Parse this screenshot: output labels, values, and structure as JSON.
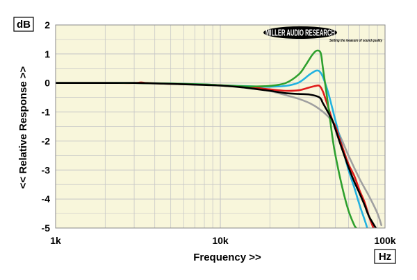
{
  "chart_data": {
    "type": "line",
    "title": "",
    "xlabel": "Frequency >>",
    "ylabel": "<< Relative Response >>",
    "x_unit": "Hz",
    "y_unit": "dB",
    "x_scale": "log",
    "xlim": [
      1000,
      100000
    ],
    "ylim": [
      -5,
      2
    ],
    "x_ticks": [
      {
        "value": 1000,
        "label": "1k"
      },
      {
        "value": 10000,
        "label": "10k"
      },
      {
        "value": 100000,
        "label": "100k"
      }
    ],
    "y_ticks": [
      {
        "value": 2,
        "label": "2"
      },
      {
        "value": 1,
        "label": "1"
      },
      {
        "value": 0,
        "label": "0"
      },
      {
        "value": -1,
        "label": "-1"
      },
      {
        "value": -2,
        "label": "-2"
      },
      {
        "value": -3,
        "label": "-3"
      },
      {
        "value": -4,
        "label": "-4"
      },
      {
        "value": -5,
        "label": "-5"
      }
    ],
    "grid": true,
    "legend": "none",
    "series": [
      {
        "color": "#a0a0a0",
        "x": [
          1000,
          2000,
          3000,
          5000,
          8000,
          10000,
          13000,
          16000,
          20000,
          25000,
          30000,
          35000,
          40000,
          45000,
          50000,
          55000,
          60000,
          70000,
          80000,
          90000,
          95000
        ],
        "y": [
          0,
          0,
          0,
          -0.02,
          -0.06,
          -0.09,
          -0.13,
          -0.18,
          -0.28,
          -0.42,
          -0.55,
          -0.7,
          -0.9,
          -1.15,
          -1.5,
          -2.0,
          -2.5,
          -3.3,
          -3.9,
          -4.5,
          -4.9
        ]
      },
      {
        "color": "#22b2e0",
        "x": [
          1000,
          2000,
          3000,
          5000,
          8000,
          10000,
          13000,
          16000,
          20000,
          25000,
          30000,
          35000,
          38000,
          40000,
          42000,
          45000,
          48000,
          50000,
          55000,
          60000,
          65000,
          70000,
          75000,
          78000
        ],
        "y": [
          0,
          0,
          0,
          -0.02,
          -0.05,
          -0.08,
          -0.1,
          -0.12,
          -0.13,
          -0.1,
          0.02,
          0.3,
          0.42,
          0.4,
          0.2,
          -0.3,
          -0.9,
          -1.3,
          -2.2,
          -3.0,
          -3.6,
          -4.2,
          -4.7,
          -5.0
        ]
      },
      {
        "color": "#e01a1a",
        "x": [
          1000,
          2000,
          3000,
          3300,
          3600,
          5000,
          8000,
          10000,
          13000,
          16000,
          20000,
          25000,
          30000,
          35000,
          38000,
          40000,
          42000,
          45000,
          48000,
          50000,
          55000,
          60000,
          65000,
          70000,
          75000,
          80000,
          85000
        ],
        "y": [
          0,
          0,
          0,
          0.02,
          0,
          -0.03,
          -0.06,
          -0.08,
          -0.12,
          -0.16,
          -0.22,
          -0.27,
          -0.25,
          -0.15,
          -0.1,
          -0.1,
          -0.3,
          -0.8,
          -1.3,
          -1.5,
          -2.2,
          -2.8,
          -3.2,
          -3.7,
          -4.1,
          -4.6,
          -5.0
        ]
      },
      {
        "color": "#2ea02e",
        "x": [
          1000,
          2000,
          3000,
          5000,
          8000,
          10000,
          13000,
          16000,
          20000,
          25000,
          30000,
          33000,
          36000,
          38000,
          40000,
          41000,
          42000,
          44000,
          46000,
          48000,
          50000,
          55000,
          60000,
          65000,
          67000
        ],
        "y": [
          0,
          0,
          0,
          -0.02,
          -0.05,
          -0.08,
          -0.11,
          -0.12,
          -0.1,
          0.0,
          0.3,
          0.62,
          0.95,
          1.1,
          1.1,
          0.95,
          0.5,
          -0.3,
          -1.1,
          -1.9,
          -2.5,
          -3.6,
          -4.4,
          -4.9,
          -5.0
        ]
      },
      {
        "color": "#000000",
        "x": [
          1000,
          2000,
          3000,
          5000,
          8000,
          10000,
          13000,
          16000,
          20000,
          25000,
          30000,
          35000,
          40000,
          42000,
          45000,
          48000,
          50000,
          55000,
          60000,
          65000,
          70000,
          75000,
          80000,
          88000
        ],
        "y": [
          0,
          0,
          0,
          -0.03,
          -0.07,
          -0.09,
          -0.14,
          -0.2,
          -0.27,
          -0.35,
          -0.38,
          -0.4,
          -0.5,
          -0.7,
          -1.0,
          -1.3,
          -1.6,
          -2.3,
          -2.9,
          -3.4,
          -3.8,
          -4.2,
          -4.6,
          -5.0
        ]
      }
    ]
  },
  "logo": {
    "name": "MILLER AUDIO RESEARCH",
    "tagline": "Setting the measure of sound quality"
  },
  "colors": {
    "plot_bg": "#f8f6db",
    "grid": "#c8c8c8"
  }
}
